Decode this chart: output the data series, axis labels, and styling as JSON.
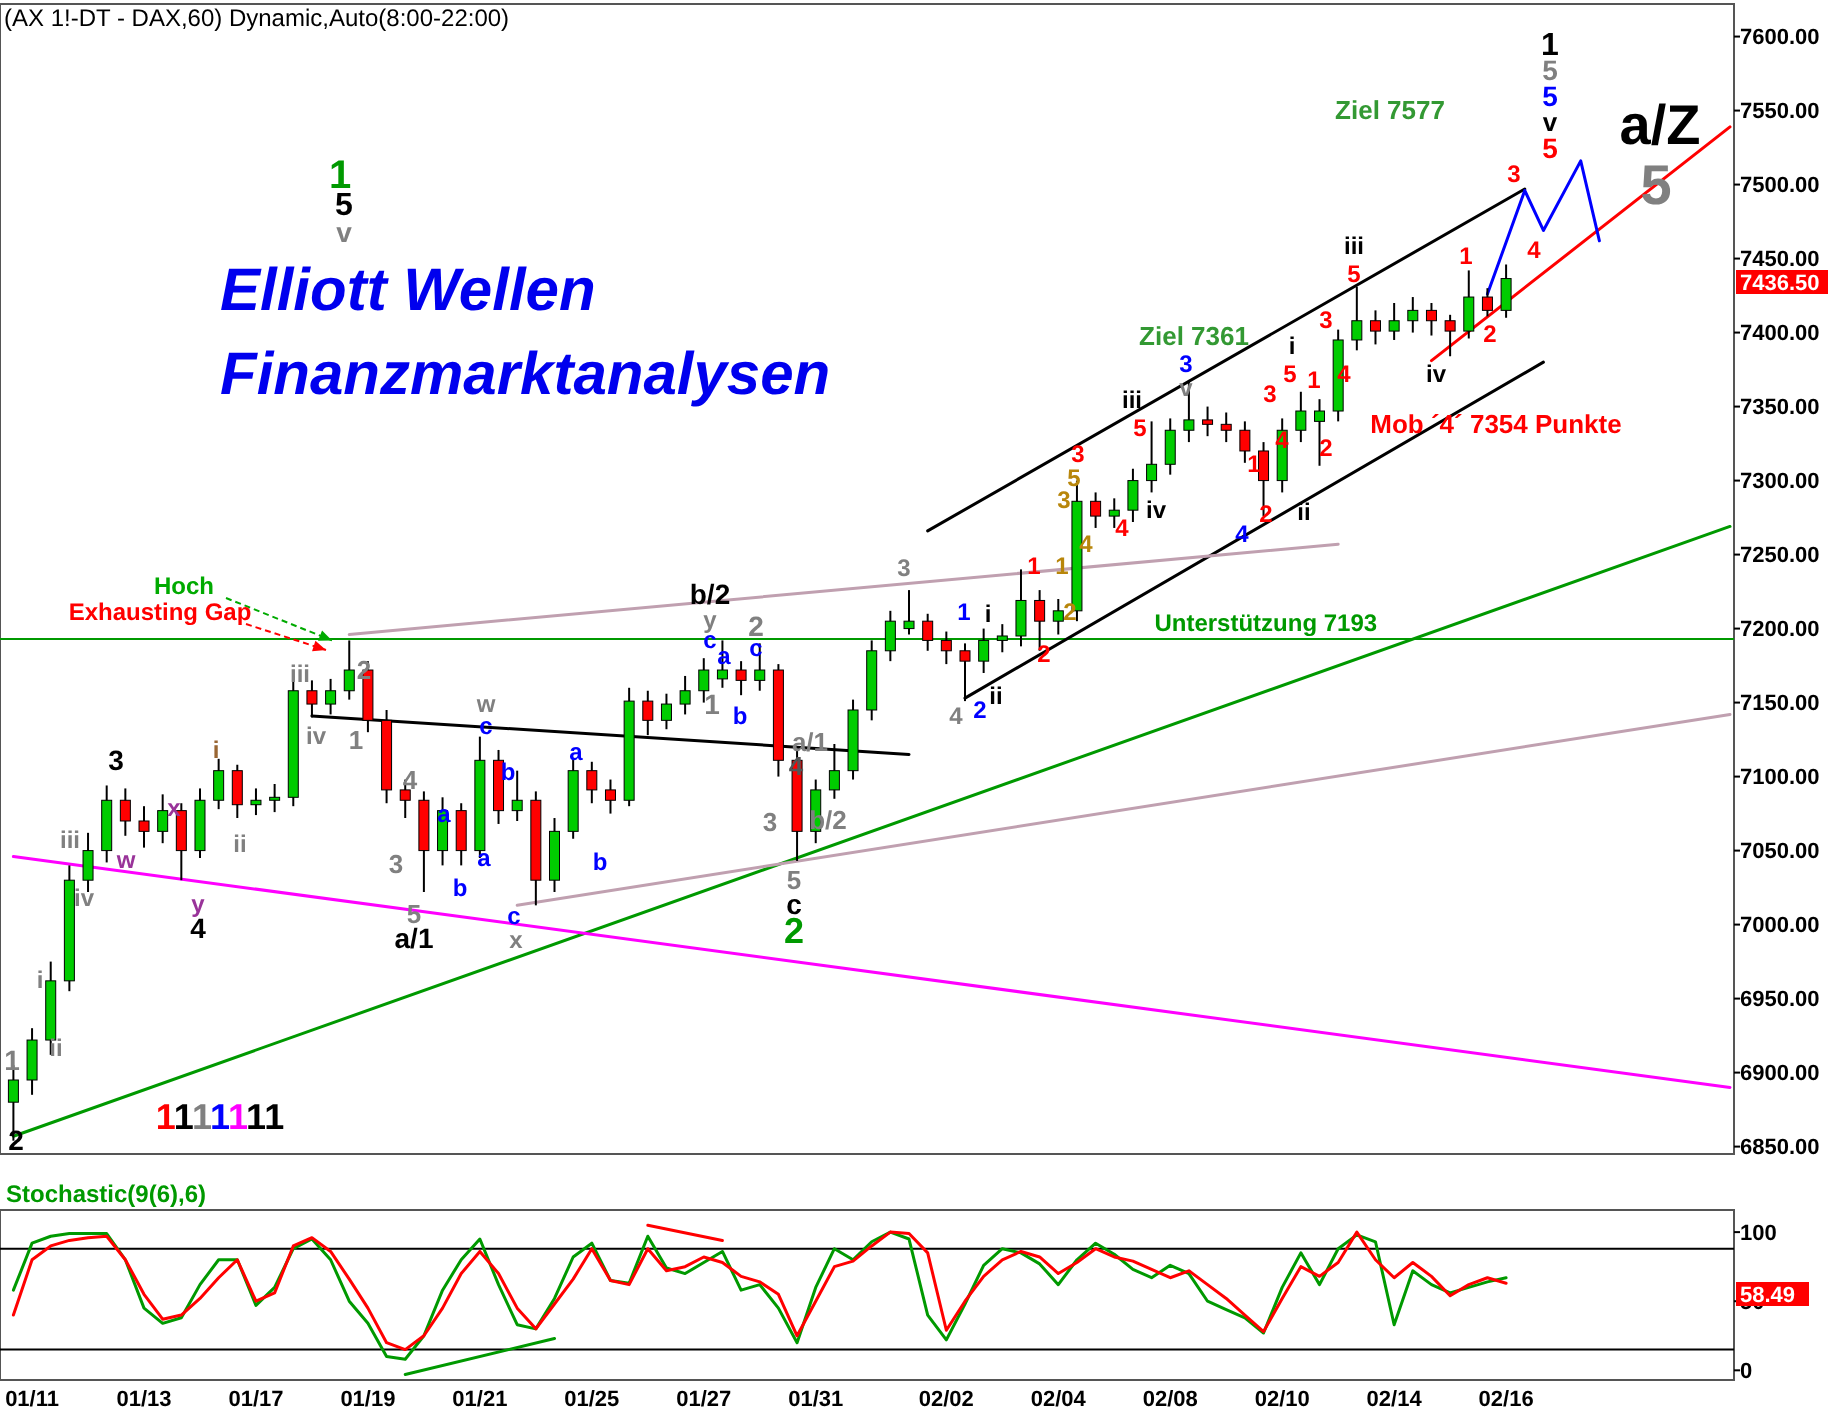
{
  "chart_data": [
    {
      "type": "candlestick",
      "title": "(AX 1!-DT - DAX,60) Dynamic,Auto(8:00-22:00)",
      "subtitle": "Elliott Wellen\nFinanzmarktanalysen",
      "categories": [
        null,
        null,
        null,
        null,
        null,
        null,
        null,
        null,
        null,
        null,
        null,
        null,
        null,
        null,
        null,
        null,
        null,
        null,
        null,
        null,
        null,
        null,
        null,
        null,
        null,
        null,
        null,
        null,
        null,
        null,
        null,
        null,
        null,
        null,
        null,
        null,
        null,
        null,
        null,
        null,
        null,
        null,
        null,
        null,
        null,
        null,
        null,
        null,
        null,
        null,
        null,
        null,
        null,
        null,
        null,
        null,
        null,
        null,
        null,
        null,
        null,
        null,
        null,
        null,
        null,
        null,
        null,
        null,
        null,
        null,
        null,
        null,
        null,
        null,
        null,
        null,
        null,
        null,
        null,
        null,
        null,
        null,
        null,
        null,
        null,
        null,
        null,
        null,
        null,
        null,
        null,
        null,
        null
      ],
      "ohlc": [
        [
          6880,
          6905,
          6854,
          6895
        ],
        [
          6895,
          6930,
          6885,
          6922
        ],
        [
          6922,
          6975,
          6912,
          6962
        ],
        [
          6962,
          7040,
          6955,
          7030
        ],
        [
          7030,
          7062,
          7022,
          7050
        ],
        [
          7050,
          7094,
          7042,
          7084
        ],
        [
          7084,
          7092,
          7060,
          7070
        ],
        [
          7070,
          7080,
          7052,
          7063
        ],
        [
          7063,
          7088,
          7055,
          7077
        ],
        [
          7077,
          7082,
          7030,
          7050
        ],
        [
          7050,
          7092,
          7045,
          7084
        ],
        [
          7084,
          7112,
          7078,
          7104
        ],
        [
          7104,
          7108,
          7072,
          7081
        ],
        [
          7081,
          7092,
          7074,
          7084
        ],
        [
          7084,
          7095,
          7076,
          7086
        ],
        [
          7086,
          7168,
          7080,
          7158
        ],
        [
          7158,
          7165,
          7140,
          7149
        ],
        [
          7149,
          7166,
          7142,
          7158
        ],
        [
          7158,
          7192,
          7152,
          7172
        ],
        [
          7172,
          7178,
          7130,
          7138
        ],
        [
          7138,
          7145,
          7082,
          7091
        ],
        [
          7091,
          7098,
          7072,
          7084
        ],
        [
          7084,
          7090,
          7022,
          7050
        ],
        [
          7050,
          7086,
          7040,
          7077
        ],
        [
          7077,
          7082,
          7040,
          7050
        ],
        [
          7050,
          7127,
          7045,
          7111
        ],
        [
          7111,
          7118,
          7068,
          7077
        ],
        [
          7077,
          7104,
          7070,
          7084
        ],
        [
          7084,
          7090,
          7013,
          7030
        ],
        [
          7030,
          7072,
          7022,
          7063
        ],
        [
          7063,
          7112,
          7058,
          7104
        ],
        [
          7104,
          7110,
          7082,
          7091
        ],
        [
          7091,
          7098,
          7075,
          7084
        ],
        [
          7084,
          7160,
          7080,
          7151
        ],
        [
          7151,
          7158,
          7128,
          7138
        ],
        [
          7138,
          7156,
          7132,
          7149
        ],
        [
          7149,
          7168,
          7142,
          7158
        ],
        [
          7158,
          7180,
          7150,
          7172
        ],
        [
          7166,
          7192,
          7160,
          7172
        ],
        [
          7172,
          7178,
          7155,
          7165
        ],
        [
          7165,
          7190,
          7158,
          7172
        ],
        [
          7172,
          7176,
          7100,
          7111
        ],
        [
          7111,
          7118,
          7043,
          7063
        ],
        [
          7063,
          7098,
          7055,
          7091
        ],
        [
          7091,
          7122,
          7085,
          7104
        ],
        [
          7104,
          7152,
          7098,
          7145
        ],
        [
          7145,
          7192,
          7138,
          7185
        ],
        [
          7185,
          7212,
          7178,
          7205
        ],
        [
          7200,
          7226,
          7196,
          7205
        ],
        [
          7205,
          7210,
          7185,
          7192
        ],
        [
          7192,
          7198,
          7176,
          7185
        ],
        [
          7185,
          7190,
          7151,
          7178
        ],
        [
          7178,
          7200,
          7170,
          7192
        ],
        [
          7192,
          7203,
          7184,
          7195
        ],
        [
          7195,
          7240,
          7188,
          7219
        ],
        [
          7219,
          7226,
          7185,
          7205
        ],
        [
          7205,
          7220,
          7196,
          7212
        ],
        [
          7212,
          7300,
          7205,
          7286
        ],
        [
          7286,
          7292,
          7268,
          7276
        ],
        [
          7276,
          7288,
          7268,
          7280
        ],
        [
          7280,
          7308,
          7272,
          7300
        ],
        [
          7300,
          7340,
          7292,
          7311
        ],
        [
          7311,
          7342,
          7304,
          7334
        ],
        [
          7334,
          7368,
          7326,
          7341
        ],
        [
          7341,
          7350,
          7330,
          7338
        ],
        [
          7338,
          7346,
          7326,
          7334
        ],
        [
          7334,
          7340,
          7312,
          7320
        ],
        [
          7320,
          7326,
          7276,
          7300
        ],
        [
          7300,
          7342,
          7292,
          7334
        ],
        [
          7334,
          7360,
          7326,
          7347
        ],
        [
          7340,
          7355,
          7310,
          7347
        ],
        [
          7347,
          7402,
          7340,
          7395
        ],
        [
          7395,
          7431,
          7388,
          7408
        ],
        [
          7408,
          7415,
          7392,
          7401
        ],
        [
          7401,
          7420,
          7395,
          7408
        ],
        [
          7408,
          7424,
          7400,
          7415
        ],
        [
          7415,
          7420,
          7398,
          7408
        ],
        [
          7408,
          7412,
          7384,
          7401
        ],
        [
          7401,
          7442,
          7396,
          7424
        ],
        [
          7424,
          7430,
          7411,
          7415
        ],
        [
          7415,
          7446,
          7410,
          7436.5
        ],
        null,
        null,
        null,
        null,
        null,
        null,
        null,
        null,
        null,
        null,
        null,
        null
      ],
      "series": [
        {
          "type": "line",
          "color": "#009900",
          "values": [
            6857,
            null,
            null,
            null,
            null,
            null,
            null,
            null,
            null,
            null,
            null,
            null,
            null,
            null,
            null,
            null,
            null,
            null,
            null,
            null,
            null,
            null,
            null,
            null,
            null,
            null,
            null,
            null,
            null,
            null,
            null,
            null,
            null,
            null,
            null,
            null,
            null,
            null,
            null,
            null,
            null,
            null,
            null,
            null,
            null,
            null,
            null,
            null,
            null,
            null,
            null,
            null,
            null,
            null,
            null,
            null,
            null,
            null,
            null,
            null,
            null,
            null,
            null,
            null,
            null,
            null,
            null,
            null,
            null,
            null,
            null,
            null,
            null,
            null,
            null,
            null,
            null,
            null,
            null,
            null,
            null,
            null,
            null,
            null,
            null,
            null,
            null,
            null,
            null,
            null,
            null,
            null,
            7269
          ]
        },
        {
          "type": "line",
          "color": "#ff00ff",
          "values": [
            7046,
            null,
            null,
            null,
            null,
            null,
            null,
            null,
            null,
            null,
            null,
            null,
            null,
            null,
            null,
            null,
            null,
            null,
            null,
            null,
            null,
            null,
            null,
            null,
            null,
            null,
            null,
            null,
            null,
            null,
            null,
            null,
            null,
            null,
            null,
            null,
            null,
            null,
            null,
            null,
            null,
            null,
            null,
            null,
            null,
            null,
            null,
            null,
            null,
            null,
            null,
            null,
            null,
            null,
            null,
            null,
            null,
            null,
            null,
            null,
            null,
            null,
            null,
            null,
            null,
            null,
            null,
            null,
            null,
            null,
            null,
            null,
            null,
            null,
            null,
            null,
            null,
            null,
            null,
            null,
            null,
            null,
            null,
            null,
            null,
            null,
            null,
            null,
            null,
            null,
            null,
            null,
            6890
          ]
        },
        {
          "type": "line",
          "color": "#000000",
          "values": [
            null,
            null,
            null,
            null,
            null,
            null,
            null,
            null,
            null,
            null,
            null,
            null,
            null,
            null,
            null,
            null,
            null,
            null,
            null,
            null,
            null,
            null,
            null,
            null,
            null,
            null,
            null,
            null,
            null,
            null,
            null,
            null,
            null,
            null,
            null,
            null,
            null,
            null,
            null,
            null,
            null,
            null,
            null,
            null,
            null,
            null,
            null,
            null,
            null,
            7266,
            null,
            null,
            null,
            null,
            null,
            null,
            null,
            null,
            null,
            null,
            null,
            null,
            null,
            null,
            null,
            null,
            null,
            null,
            null,
            null,
            null,
            null,
            null,
            null,
            null,
            null,
            null,
            null,
            null,
            null,
            null,
            7497,
            null,
            null,
            null,
            null,
            null,
            null,
            null,
            null,
            null,
            null,
            null
          ]
        },
        {
          "type": "line",
          "color": "#000000",
          "values": [
            null,
            null,
            null,
            null,
            null,
            null,
            null,
            null,
            null,
            null,
            null,
            null,
            null,
            null,
            null,
            null,
            null,
            null,
            null,
            null,
            null,
            null,
            null,
            null,
            null,
            null,
            null,
            null,
            null,
            null,
            null,
            null,
            null,
            null,
            null,
            null,
            null,
            null,
            null,
            null,
            null,
            null,
            null,
            null,
            null,
            null,
            null,
            null,
            null,
            null,
            null,
            7153,
            null,
            null,
            null,
            null,
            null,
            null,
            null,
            null,
            null,
            null,
            null,
            null,
            null,
            null,
            null,
            null,
            null,
            null,
            null,
            null,
            null,
            null,
            null,
            null,
            null,
            null,
            null,
            null,
            null,
            null,
            7380,
            null,
            null,
            null,
            null,
            null,
            null,
            null,
            null,
            null,
            null
          ]
        },
        {
          "type": "line",
          "color": "#000000",
          "values": [
            null,
            null,
            null,
            null,
            null,
            null,
            null,
            null,
            null,
            null,
            null,
            null,
            null,
            null,
            null,
            null,
            7141,
            null,
            null,
            null,
            null,
            null,
            null,
            null,
            null,
            null,
            null,
            null,
            null,
            null,
            null,
            null,
            null,
            null,
            null,
            null,
            null,
            null,
            null,
            null,
            null,
            null,
            null,
            null,
            null,
            null,
            null,
            null,
            7115,
            null,
            null,
            null,
            null,
            null,
            null,
            null,
            null,
            null,
            null,
            null,
            null,
            null,
            null,
            null,
            null,
            null,
            null,
            null,
            null,
            null,
            null,
            null,
            null,
            null,
            null,
            null,
            null,
            null,
            null,
            null,
            null,
            null,
            null,
            null,
            null,
            null,
            null,
            null,
            null,
            null,
            null,
            null,
            null
          ]
        },
        {
          "type": "line",
          "color": "#c0a0b0",
          "values": [
            null,
            null,
            null,
            null,
            null,
            null,
            null,
            null,
            null,
            null,
            null,
            null,
            null,
            null,
            null,
            null,
            null,
            null,
            7196,
            null,
            null,
            null,
            null,
            null,
            null,
            null,
            null,
            null,
            null,
            null,
            null,
            null,
            null,
            null,
            null,
            null,
            null,
            null,
            null,
            null,
            null,
            null,
            null,
            null,
            null,
            null,
            null,
            null,
            null,
            null,
            null,
            null,
            null,
            null,
            null,
            null,
            null,
            null,
            null,
            null,
            null,
            null,
            null,
            null,
            null,
            null,
            null,
            null,
            null,
            null,
            null,
            7257,
            null,
            null,
            null,
            null,
            null,
            null,
            null,
            null,
            null,
            null,
            null,
            null,
            null,
            null,
            null,
            null,
            null,
            null,
            null,
            null,
            null
          ]
        },
        {
          "type": "line",
          "color": "#c0a0b0",
          "values": [
            null,
            null,
            null,
            null,
            null,
            null,
            null,
            null,
            null,
            null,
            null,
            null,
            null,
            null,
            null,
            null,
            null,
            null,
            null,
            null,
            null,
            null,
            null,
            null,
            null,
            null,
            null,
            7013,
            null,
            null,
            null,
            null,
            null,
            null,
            null,
            null,
            null,
            null,
            null,
            null,
            null,
            null,
            null,
            null,
            null,
            null,
            null,
            null,
            null,
            null,
            null,
            null,
            null,
            null,
            null,
            null,
            null,
            null,
            null,
            null,
            null,
            null,
            null,
            null,
            null,
            null,
            null,
            null,
            null,
            null,
            null,
            null,
            null,
            null,
            null,
            null,
            null,
            null,
            null,
            null,
            null,
            null,
            null,
            null,
            null,
            null,
            null,
            null,
            null,
            null,
            null,
            null,
            7142
          ]
        },
        {
          "type": "line",
          "color": "#ff0000",
          "values": [
            null,
            null,
            null,
            null,
            null,
            null,
            null,
            null,
            null,
            null,
            null,
            null,
            null,
            null,
            null,
            null,
            null,
            null,
            null,
            null,
            null,
            null,
            null,
            null,
            null,
            null,
            null,
            null,
            null,
            null,
            null,
            null,
            null,
            null,
            null,
            null,
            null,
            null,
            null,
            null,
            null,
            null,
            null,
            null,
            null,
            null,
            null,
            null,
            null,
            null,
            null,
            null,
            null,
            null,
            null,
            null,
            null,
            null,
            null,
            null,
            null,
            null,
            null,
            null,
            null,
            null,
            null,
            null,
            null,
            null,
            null,
            null,
            null,
            null,
            null,
            null,
            7381,
            null,
            null,
            null,
            null,
            null,
            null,
            null,
            null,
            null,
            null,
            null,
            null,
            null,
            null,
            null,
            7539
          ]
        },
        {
          "type": "line",
          "color": "#0000ff",
          "values": [
            null,
            null,
            null,
            null,
            null,
            null,
            null,
            null,
            null,
            null,
            null,
            null,
            null,
            null,
            null,
            null,
            null,
            null,
            null,
            null,
            null,
            null,
            null,
            null,
            null,
            null,
            null,
            null,
            null,
            null,
            null,
            null,
            null,
            null,
            null,
            null,
            null,
            null,
            null,
            null,
            null,
            null,
            null,
            null,
            null,
            null,
            null,
            null,
            null,
            null,
            null,
            null,
            null,
            null,
            null,
            null,
            null,
            null,
            null,
            null,
            null,
            null,
            null,
            null,
            null,
            null,
            null,
            null,
            null,
            null,
            null,
            null,
            null,
            null,
            null,
            null,
            null,
            null,
            null,
            7426,
            null,
            7496,
            7469,
            null,
            7516,
            7462,
            null,
            null,
            null,
            null,
            null,
            null,
            null
          ]
        }
      ],
      "ylim": [
        6845,
        7622
      ],
      "yticks": [
        {
          "value": 6850,
          "label": "6850.00"
        },
        {
          "value": 6900,
          "label": "6900.00"
        },
        {
          "value": 6950,
          "label": "6950.00"
        },
        {
          "value": 7000,
          "label": "7000.00"
        },
        {
          "value": 7050,
          "label": "7050.00"
        },
        {
          "value": 7100,
          "label": "7100.00"
        },
        {
          "value": 7150,
          "label": "7150.00"
        },
        {
          "value": 7200,
          "label": "7200.00"
        },
        {
          "value": 7250,
          "label": "7250.00"
        },
        {
          "value": 7300,
          "label": "7300.00"
        },
        {
          "value": 7350,
          "label": "7350.00"
        },
        {
          "value": 7400,
          "label": "7400.00"
        },
        {
          "value": 7450,
          "label": "7450.00"
        },
        {
          "value": 7500,
          "label": "7500.00"
        },
        {
          "value": 7550,
          "label": "7550.00"
        },
        {
          "value": 7600,
          "label": "7600.00"
        }
      ],
      "ref_lines": [
        {
          "axis": "y",
          "value": 7193,
          "label": "Unterstützung 7193",
          "color": "#009900"
        }
      ],
      "annotations": [
        {
          "text": "Hoch",
          "y": 7192
        },
        "Exhausting Gap",
        "1",
        "5",
        "v",
        "Ziel 7577",
        "Ziel 7361",
        "Mob ´4´ 7354 Punkte",
        "a/Z",
        "5",
        "1",
        "5",
        "5",
        "v",
        "5",
        "3",
        "4",
        "1",
        "2",
        "iii",
        "5",
        "iv",
        "3",
        "4",
        "i",
        "5",
        "1",
        "3",
        "4",
        "1",
        "2",
        "ii",
        "2",
        "4",
        "3",
        "v",
        "iii",
        "5",
        "iv",
        "3",
        "5",
        "3",
        "4",
        "4",
        "1",
        "1",
        "2",
        "2",
        "3",
        "1",
        "i",
        "4",
        "2",
        "ii",
        "b/2",
        "y",
        "c",
        "a",
        "2",
        "c",
        "1",
        "b",
        "a/1",
        "4",
        "3",
        "b/2",
        "5",
        "c",
        "2",
        "w",
        "c",
        "b",
        "a",
        "b",
        "a",
        "c",
        "x",
        "4",
        "a",
        "3",
        "b",
        "5",
        "a/1",
        "2",
        "1",
        "iii",
        "iv",
        "i",
        "ii",
        "3",
        "w",
        "x",
        "y",
        "4",
        "iii",
        "iv",
        "i",
        "ii",
        "1",
        "2",
        "1111111",
        "7436.50"
      ]
    },
    {
      "type": "line",
      "title": "Stochastic(9(6),6)",
      "categories": [
        null,
        "01/11",
        null,
        null,
        null,
        null,
        null,
        "01/13",
        null,
        null,
        null,
        null,
        null,
        "01/17",
        null,
        null,
        null,
        null,
        null,
        "01/19",
        null,
        null,
        null,
        null,
        null,
        "01/21",
        null,
        null,
        null,
        null,
        null,
        "01/25",
        null,
        null,
        null,
        null,
        null,
        "01/27",
        null,
        null,
        null,
        null,
        null,
        "01/31",
        null,
        null,
        null,
        null,
        null,
        null,
        "02/02",
        null,
        null,
        null,
        null,
        null,
        "02/04",
        null,
        null,
        null,
        null,
        null,
        "02/08",
        null,
        null,
        null,
        null,
        null,
        "02/10",
        null,
        null,
        null,
        null,
        null,
        "02/14",
        null,
        null,
        null,
        null,
        null,
        "02/16",
        null,
        null,
        null,
        null,
        null,
        null,
        null,
        null,
        null,
        null,
        null,
        null
      ],
      "series": [
        {
          "color": "#009900",
          "values": [
            58,
            92,
            97,
            99,
            99,
            99,
            80,
            45,
            34,
            38,
            62,
            80,
            80,
            47,
            60,
            88,
            95,
            80,
            50,
            34,
            10,
            8,
            25,
            58,
            80,
            95,
            62,
            33,
            30,
            52,
            82,
            92,
            65,
            63,
            97,
            74,
            70,
            78,
            86,
            58,
            62,
            45,
            20,
            60,
            88,
            80,
            93,
            100,
            95,
            40,
            22,
            48,
            76,
            88,
            85,
            77,
            62,
            80,
            92,
            84,
            73,
            67,
            76,
            70,
            50,
            44,
            38,
            27,
            60,
            85,
            62,
            88,
            98,
            93,
            33,
            72,
            62,
            56,
            60,
            64,
            67,
            null,
            null,
            null,
            null,
            null,
            null,
            null,
            null,
            null,
            null,
            null,
            null
          ]
        },
        {
          "color": "#ff0000",
          "values": [
            40,
            80,
            90,
            94,
            96,
            97,
            80,
            55,
            37,
            40,
            52,
            67,
            80,
            50,
            56,
            90,
            96,
            86,
            66,
            45,
            20,
            15,
            25,
            45,
            70,
            86,
            70,
            45,
            30,
            48,
            66,
            88,
            65,
            62,
            88,
            72,
            75,
            82,
            78,
            68,
            64,
            55,
            25,
            50,
            75,
            79,
            90,
            100,
            99,
            85,
            29,
            50,
            68,
            80,
            86,
            82,
            70,
            78,
            88,
            82,
            79,
            73,
            67,
            72,
            62,
            52,
            40,
            28,
            52,
            75,
            68,
            78,
            100,
            80,
            67,
            78,
            68,
            54,
            62,
            67,
            63,
            null,
            null,
            null,
            null,
            null,
            null,
            null,
            null,
            null,
            null,
            null,
            null
          ]
        },
        {
          "color": "#ff0000",
          "values": [
            null,
            null,
            null,
            null,
            null,
            null,
            null,
            null,
            null,
            null,
            null,
            null,
            null,
            null,
            null,
            null,
            null,
            null,
            null,
            null,
            null,
            null,
            null,
            null,
            null,
            null,
            null,
            null,
            null,
            null,
            null,
            null,
            null,
            null,
            105,
            null,
            null,
            null,
            94,
            null,
            null,
            null,
            null,
            null,
            null,
            null,
            null,
            null,
            null,
            null,
            null,
            null,
            null,
            null,
            null,
            null,
            null,
            null,
            null,
            null,
            null,
            null,
            null,
            null,
            null,
            null,
            null,
            null,
            null,
            null,
            null,
            null,
            null,
            null,
            null,
            null,
            null,
            null,
            null,
            null,
            null,
            null,
            null,
            null,
            null,
            null,
            null,
            null,
            null,
            null,
            null,
            null,
            null
          ]
        },
        {
          "color": "#009900",
          "values": [
            null,
            null,
            null,
            null,
            null,
            null,
            null,
            null,
            null,
            null,
            null,
            null,
            null,
            null,
            null,
            null,
            null,
            null,
            null,
            null,
            null,
            -3,
            null,
            null,
            null,
            null,
            null,
            null,
            null,
            23,
            null,
            null,
            null,
            null,
            null,
            null,
            null,
            null,
            null,
            null,
            null,
            null,
            null,
            null,
            null,
            null,
            null,
            null,
            null,
            null,
            null,
            null,
            null,
            null,
            null,
            null,
            null,
            null,
            null,
            null,
            null,
            null,
            null,
            null,
            null,
            null,
            null,
            null,
            null,
            null,
            null,
            null,
            null,
            null,
            null,
            null,
            null,
            null,
            null,
            null,
            null,
            null,
            null,
            null,
            null,
            null,
            null,
            null,
            null,
            null,
            null,
            null,
            null
          ]
        }
      ],
      "ylim": [
        -7,
        116
      ],
      "yticks": [
        0,
        50,
        100
      ],
      "ref_lines": [
        {
          "axis": "y",
          "value": 88,
          "color": "#000000"
        },
        {
          "axis": "y",
          "value": 15,
          "color": "#000000"
        }
      ],
      "annotations": [
        "58.49"
      ]
    }
  ]
}
